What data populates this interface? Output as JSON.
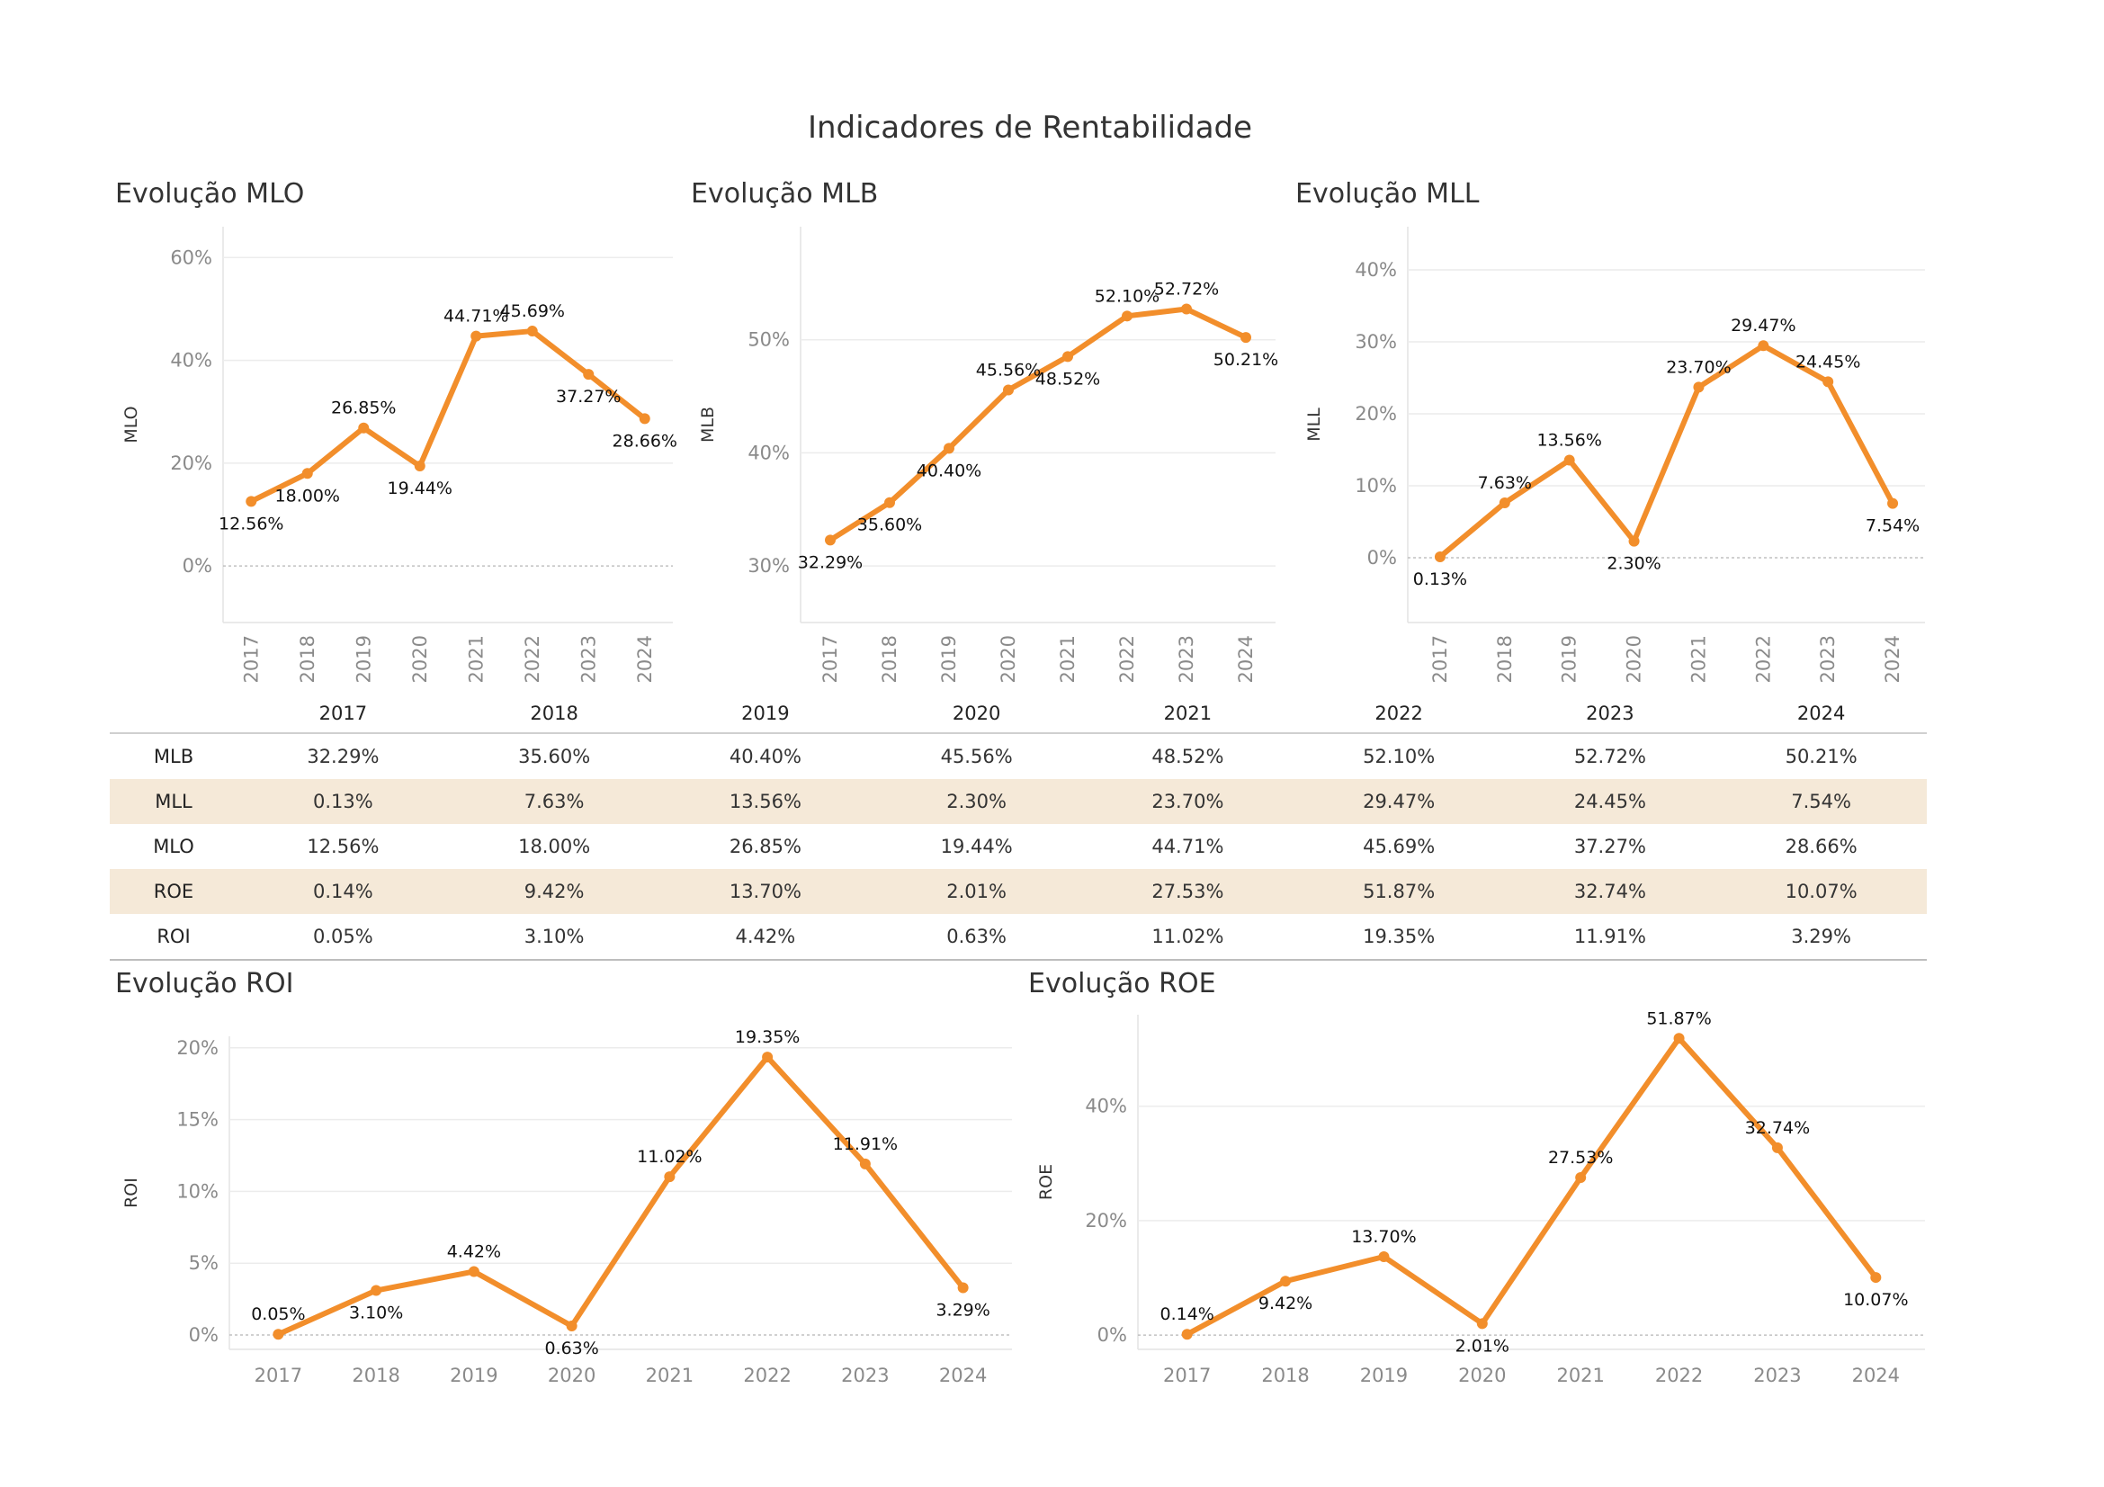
{
  "page_title": "Indicadores de Rentabilidade",
  "accent_color": "#f28e2b",
  "years": [
    "2017",
    "2018",
    "2019",
    "2020",
    "2021",
    "2022",
    "2023",
    "2024"
  ],
  "chart_data": [
    {
      "id": "mlo",
      "type": "line",
      "title": "Evolução MLO",
      "ylabel": "MLO",
      "x": [
        "2017",
        "2018",
        "2019",
        "2020",
        "2021",
        "2022",
        "2023",
        "2024"
      ],
      "values": [
        12.56,
        18.0,
        26.85,
        19.44,
        44.71,
        45.69,
        37.27,
        28.66
      ],
      "labels": [
        "12.56%",
        "18.00%",
        "26.85%",
        "19.44%",
        "44.71%",
        "45.69%",
        "37.27%",
        "28.66%"
      ],
      "label_pos": [
        "below",
        "below",
        "above",
        "below",
        "above",
        "above",
        "below",
        "below"
      ],
      "ylim": [
        -11,
        66
      ],
      "yticks": [
        0,
        20,
        40,
        60
      ],
      "ytick_labels": [
        "0%",
        "20%",
        "40%",
        "60%"
      ],
      "x_tick_rotation": "vertical",
      "grid": true
    },
    {
      "id": "mlb",
      "type": "line",
      "title": "Evolução MLB",
      "ylabel": "MLB",
      "x": [
        "2017",
        "2018",
        "2019",
        "2020",
        "2021",
        "2022",
        "2023",
        "2024"
      ],
      "values": [
        32.29,
        35.6,
        40.4,
        45.56,
        48.52,
        52.1,
        52.72,
        50.21
      ],
      "labels": [
        "32.29%",
        "35.60%",
        "40.40%",
        "45.56%",
        "48.52%",
        "52.10%",
        "52.72%",
        "50.21%"
      ],
      "label_pos": [
        "below",
        "below",
        "below",
        "above",
        "below",
        "above",
        "above",
        "below"
      ],
      "ylim": [
        25,
        60
      ],
      "yticks": [
        30,
        40,
        50
      ],
      "ytick_labels": [
        "30%",
        "40%",
        "50%"
      ],
      "x_tick_rotation": "vertical",
      "grid": true
    },
    {
      "id": "mll",
      "type": "line",
      "title": "Evolução MLL",
      "ylabel": "MLL",
      "x": [
        "2017",
        "2018",
        "2019",
        "2020",
        "2021",
        "2022",
        "2023",
        "2024"
      ],
      "values": [
        0.13,
        7.63,
        13.56,
        2.3,
        23.7,
        29.47,
        24.45,
        7.54
      ],
      "labels": [
        "0.13%",
        "7.63%",
        "13.56%",
        "2.30%",
        "23.70%",
        "29.47%",
        "24.45%",
        "7.54%"
      ],
      "label_pos": [
        "below",
        "above",
        "above",
        "below",
        "above",
        "above",
        "above",
        "below"
      ],
      "ylim": [
        -9,
        46
      ],
      "yticks": [
        0,
        10,
        20,
        30,
        40
      ],
      "ytick_labels": [
        "0%",
        "10%",
        "20%",
        "30%",
        "40%"
      ],
      "x_tick_rotation": "vertical",
      "grid": true
    },
    {
      "id": "roi",
      "type": "line",
      "title": "Evolução ROI",
      "ylabel": "ROI",
      "x": [
        "2017",
        "2018",
        "2019",
        "2020",
        "2021",
        "2022",
        "2023",
        "2024"
      ],
      "values": [
        0.05,
        3.1,
        4.42,
        0.63,
        11.02,
        19.35,
        11.91,
        3.29
      ],
      "labels": [
        "0.05%",
        "3.10%",
        "4.42%",
        "0.63%",
        "11.02%",
        "19.35%",
        "11.91%",
        "3.29%"
      ],
      "label_pos": [
        "above",
        "below",
        "above",
        "below",
        "above",
        "above",
        "above",
        "below"
      ],
      "ylim": [
        -1,
        20.8
      ],
      "yticks": [
        0,
        5,
        10,
        15,
        20
      ],
      "ytick_labels": [
        "0%",
        "5%",
        "10%",
        "15%",
        "20%"
      ],
      "x_tick_rotation": "horizontal",
      "grid": true
    },
    {
      "id": "roe",
      "type": "line",
      "title": "Evolução ROE",
      "ylabel": "ROE",
      "x": [
        "2017",
        "2018",
        "2019",
        "2020",
        "2021",
        "2022",
        "2023",
        "2024"
      ],
      "values": [
        0.14,
        9.42,
        13.7,
        2.01,
        27.53,
        51.87,
        32.74,
        10.07
      ],
      "labels": [
        "0.14%",
        "9.42%",
        "13.70%",
        "2.01%",
        "27.53%",
        "51.87%",
        "32.74%",
        "10.07%"
      ],
      "label_pos": [
        "above",
        "below",
        "above",
        "below",
        "above",
        "above",
        "above",
        "below"
      ],
      "ylim": [
        -2.5,
        56
      ],
      "yticks": [
        0,
        20,
        40
      ],
      "ytick_labels": [
        "0%",
        "20%",
        "40%"
      ],
      "x_tick_rotation": "horizontal",
      "grid": true
    }
  ],
  "table": {
    "columns": [
      "2017",
      "2018",
      "2019",
      "2020",
      "2021",
      "2022",
      "2023",
      "2024"
    ],
    "rows": [
      {
        "label": "MLB",
        "values": [
          "32.29%",
          "35.60%",
          "40.40%",
          "45.56%",
          "48.52%",
          "52.10%",
          "52.72%",
          "50.21%"
        ]
      },
      {
        "label": "MLL",
        "values": [
          "0.13%",
          "7.63%",
          "13.56%",
          "2.30%",
          "23.70%",
          "29.47%",
          "24.45%",
          "7.54%"
        ]
      },
      {
        "label": "MLO",
        "values": [
          "12.56%",
          "18.00%",
          "26.85%",
          "19.44%",
          "44.71%",
          "45.69%",
          "37.27%",
          "28.66%"
        ]
      },
      {
        "label": "ROE",
        "values": [
          "0.14%",
          "9.42%",
          "13.70%",
          "2.01%",
          "27.53%",
          "51.87%",
          "32.74%",
          "10.07%"
        ]
      },
      {
        "label": "ROI",
        "values": [
          "0.05%",
          "3.10%",
          "4.42%",
          "0.63%",
          "11.02%",
          "19.35%",
          "11.91%",
          "3.29%"
        ]
      }
    ]
  }
}
